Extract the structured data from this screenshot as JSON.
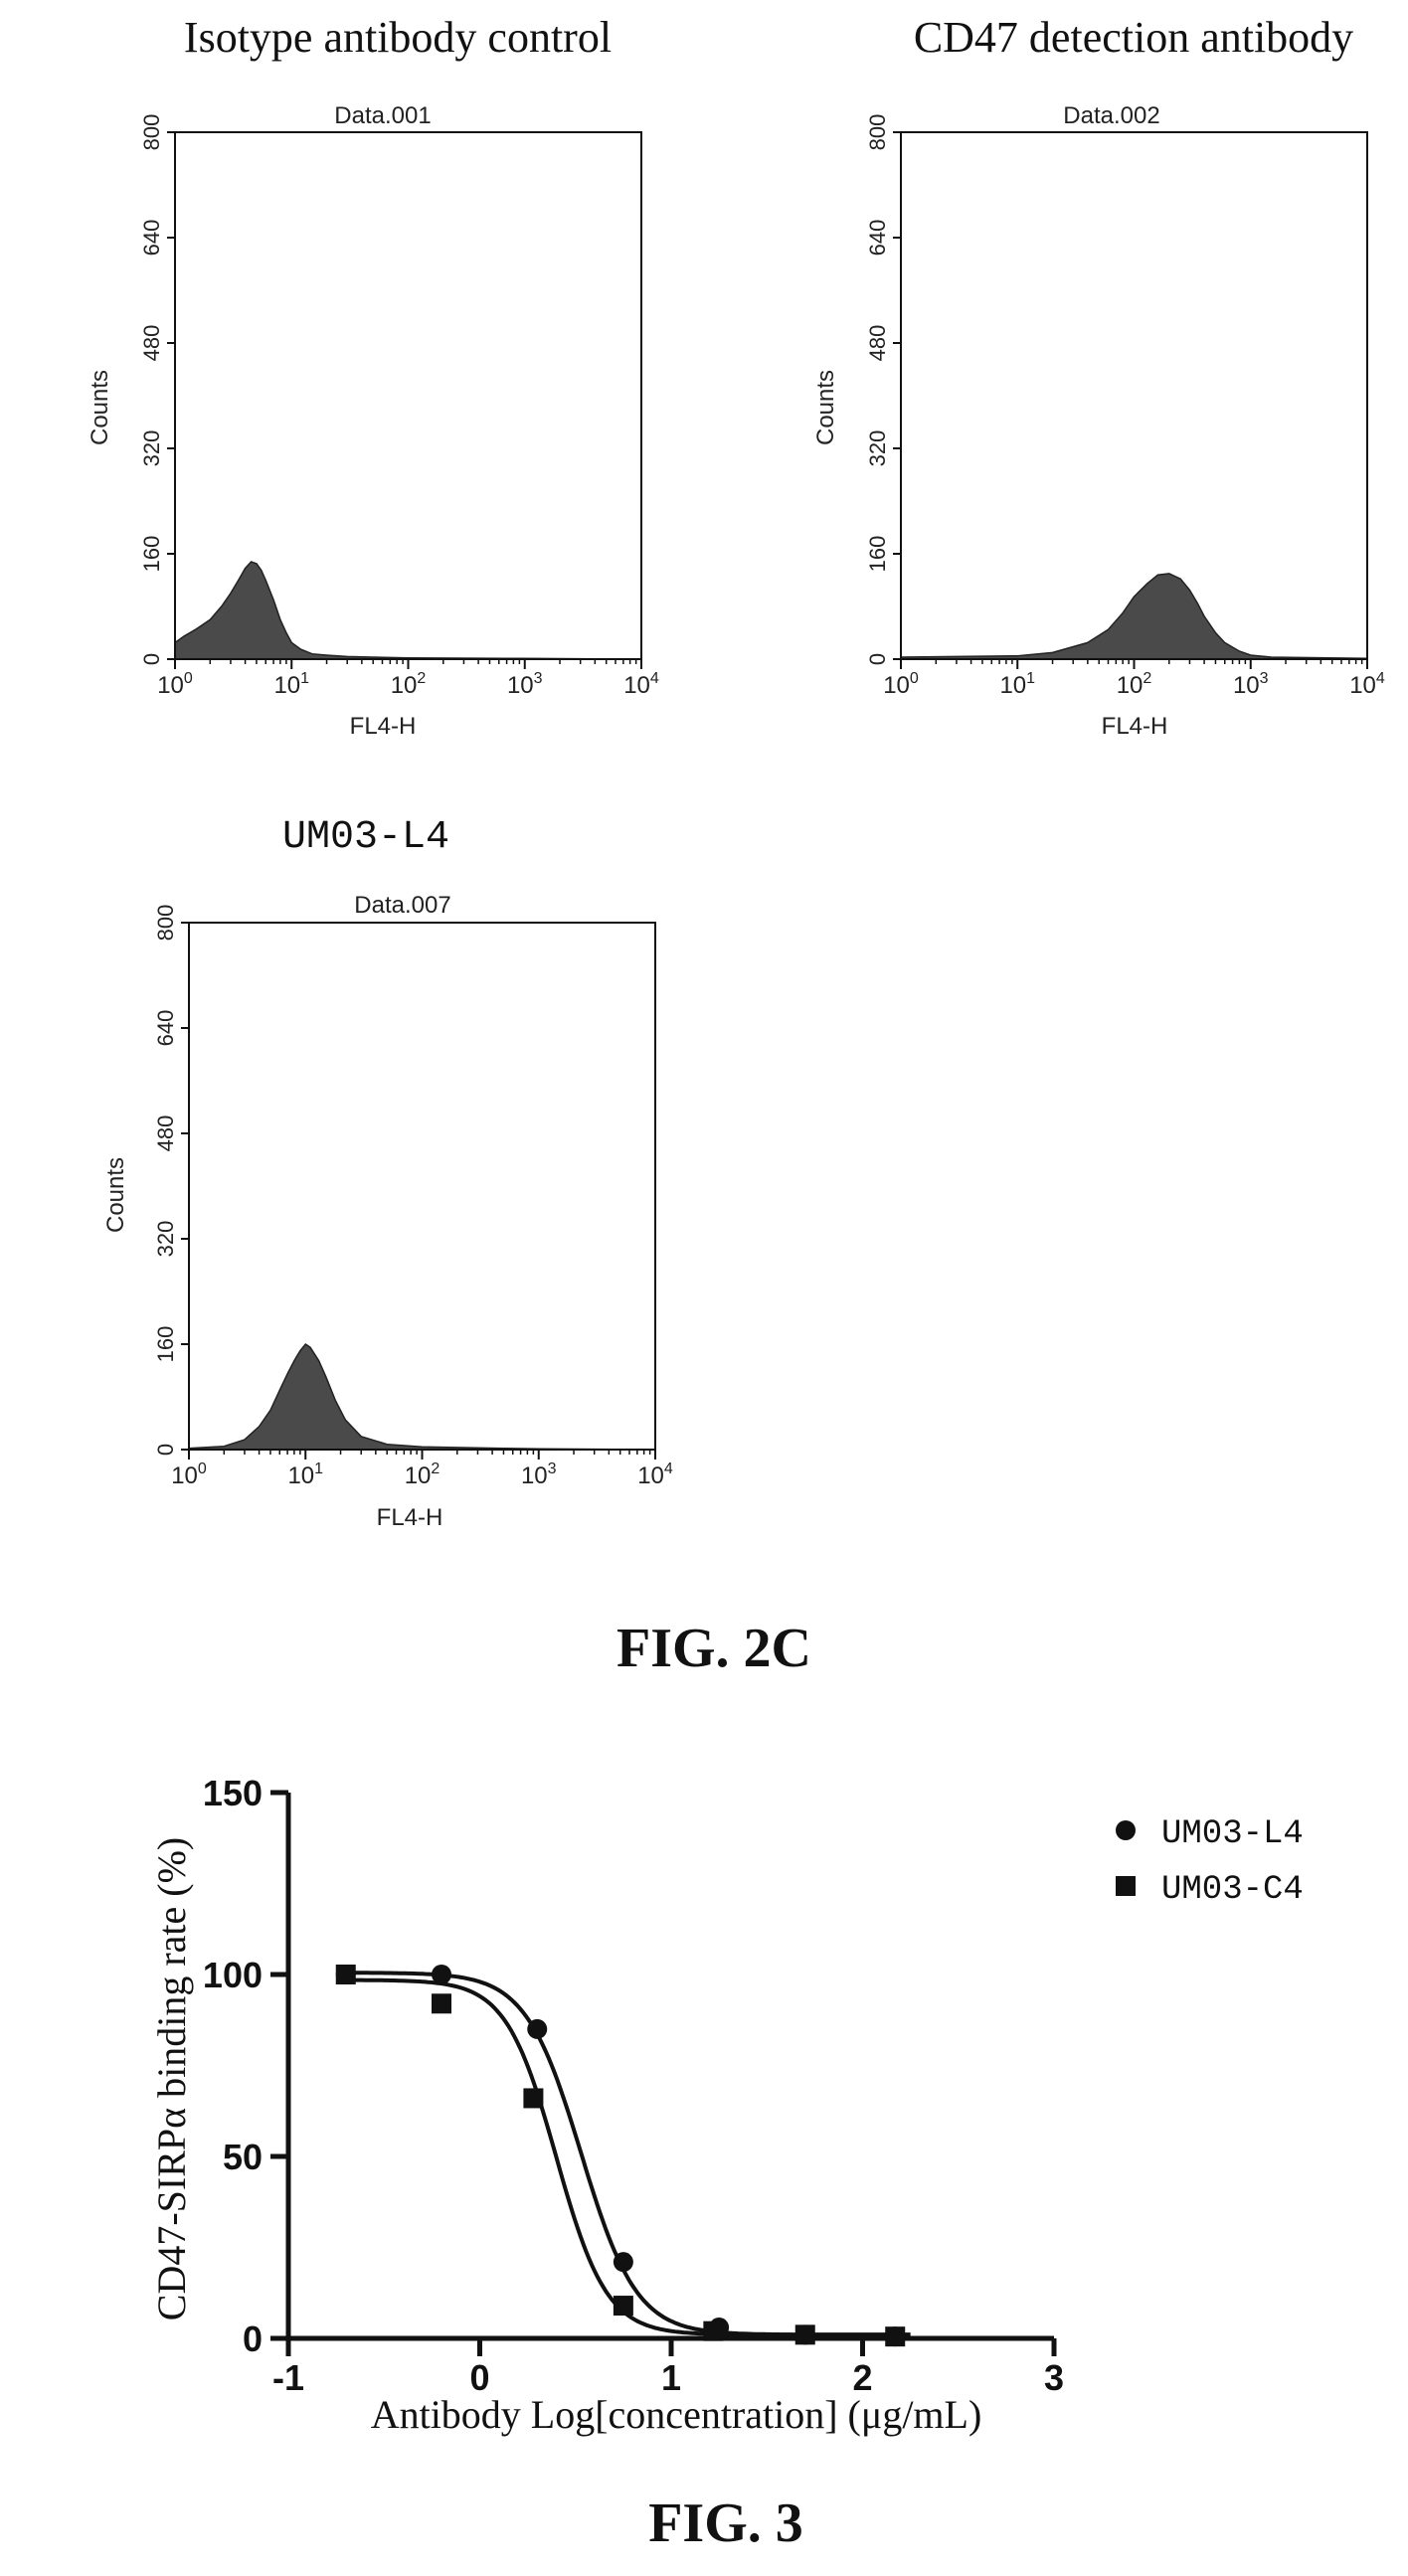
{
  "figures": {
    "fig2c_caption": "FIG. 2C",
    "fig3_caption": "FIG. 3"
  },
  "chart_data": [
    {
      "type": "area",
      "id": "hist1",
      "title": "Isotype antibody control",
      "subtitle": "Data.001",
      "xlabel": "FL4-H",
      "ylabel": "Counts",
      "xscale": "log",
      "xlim": [
        1,
        10000
      ],
      "ylim": [
        0,
        800
      ],
      "x_ticks": [
        "10^0",
        "10^1",
        "10^2",
        "10^3",
        "10^4"
      ],
      "y_ticks": [
        0,
        160,
        320,
        480,
        640,
        800
      ],
      "fill_color": "#4a4a4a",
      "x": [
        1,
        1.2,
        1.5,
        2,
        2.5,
        3,
        3.5,
        4,
        4.5,
        5,
        5.5,
        6,
        7,
        8,
        9,
        10,
        12,
        15,
        20,
        30,
        50,
        100,
        1000,
        10000
      ],
      "y": [
        25,
        35,
        45,
        60,
        80,
        100,
        120,
        138,
        148,
        145,
        135,
        120,
        90,
        60,
        40,
        25,
        15,
        8,
        6,
        4,
        3,
        2,
        1,
        0
      ]
    },
    {
      "type": "area",
      "id": "hist2",
      "title": "CD47 detection antibody",
      "subtitle": "Data.002",
      "xlabel": "FL4-H",
      "ylabel": "Counts",
      "xscale": "log",
      "xlim": [
        1,
        10000
      ],
      "ylim": [
        0,
        800
      ],
      "x_ticks": [
        "10^0",
        "10^1",
        "10^2",
        "10^3",
        "10^4"
      ],
      "y_ticks": [
        0,
        160,
        320,
        480,
        640,
        800
      ],
      "fill_color": "#4a4a4a",
      "x": [
        1,
        10,
        20,
        40,
        60,
        80,
        100,
        130,
        160,
        200,
        250,
        300,
        350,
        400,
        500,
        600,
        800,
        1000,
        1500,
        10000
      ],
      "y": [
        3,
        5,
        10,
        25,
        45,
        70,
        95,
        115,
        128,
        130,
        122,
        105,
        85,
        65,
        40,
        25,
        12,
        6,
        3,
        1
      ]
    },
    {
      "type": "area",
      "id": "hist3",
      "title": "UM03-L4",
      "subtitle": "Data.007",
      "xlabel": "FL4-H",
      "ylabel": "Counts",
      "xscale": "log",
      "xlim": [
        1,
        10000
      ],
      "ylim": [
        0,
        800
      ],
      "x_ticks": [
        "10^0",
        "10^1",
        "10^2",
        "10^3",
        "10^4"
      ],
      "y_ticks": [
        0,
        160,
        320,
        480,
        640,
        800
      ],
      "fill_color": "#4a4a4a",
      "x": [
        1,
        2,
        3,
        4,
        5,
        6,
        7,
        8,
        9,
        10,
        11,
        13,
        15,
        18,
        22,
        30,
        50,
        100,
        500,
        1000,
        10000
      ],
      "y": [
        2,
        5,
        15,
        35,
        60,
        90,
        115,
        135,
        150,
        160,
        155,
        135,
        110,
        75,
        45,
        20,
        8,
        4,
        2,
        1,
        0
      ]
    },
    {
      "type": "scatter",
      "id": "fig3",
      "xlabel": "Antibody Log[concentration] (μg/mL)",
      "ylabel": "CD47-SIRPα binding rate (%)",
      "xlim": [
        -1,
        3
      ],
      "ylim": [
        0,
        150
      ],
      "x_ticks": [
        -1,
        0,
        1,
        2,
        3
      ],
      "y_ticks": [
        0,
        50,
        100,
        150
      ],
      "legend_position": "top-right",
      "series": [
        {
          "name": "UM03-L4",
          "marker": "circle",
          "x": [
            -0.7,
            -0.2,
            0.3,
            0.75,
            1.25,
            1.7,
            2.17
          ],
          "y": [
            100,
            100,
            85,
            21,
            3,
            1,
            0.5
          ],
          "fit": {
            "top": 100.5,
            "bottom": 1,
            "log_ec50": 0.53,
            "hill": -3.0
          }
        },
        {
          "name": "UM03-C4",
          "marker": "square",
          "x": [
            -0.7,
            -0.2,
            0.28,
            0.75,
            1.22,
            1.7,
            2.17
          ],
          "y": [
            100,
            92,
            66,
            9,
            2,
            1,
            0.5
          ],
          "fit": {
            "top": 98.5,
            "bottom": 1,
            "log_ec50": 0.4,
            "hill": -3.3
          }
        }
      ]
    }
  ]
}
